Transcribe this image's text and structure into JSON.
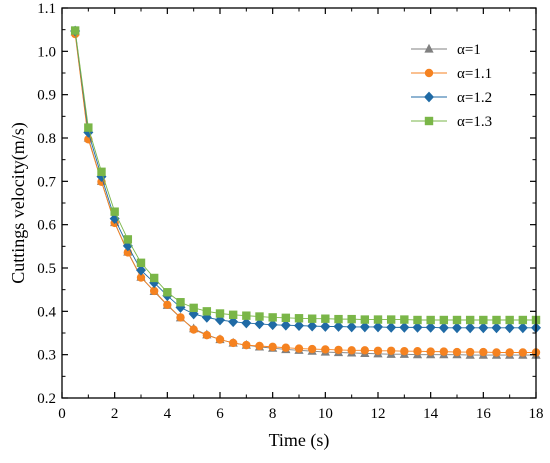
{
  "chart_data": {
    "type": "line",
    "title": "",
    "xlabel": "Time (s)",
    "ylabel": "Cuttings velocity(m/s)",
    "xlim": [
      0,
      18
    ],
    "ylim": [
      0.2,
      1.1
    ],
    "xticks": [
      "0",
      "2",
      "4",
      "6",
      "8",
      "10",
      "12",
      "14",
      "16",
      "18"
    ],
    "yticks": [
      "0.2",
      "0.3",
      "0.4",
      "0.5",
      "0.6",
      "0.7",
      "0.8",
      "0.9",
      "1.0",
      "1.1"
    ],
    "grid": false,
    "legend_position": "top-right",
    "x": [
      0.5,
      1.0,
      1.5,
      2.0,
      2.5,
      3.0,
      3.5,
      4.0,
      4.5,
      5.0,
      5.5,
      6.0,
      6.5,
      7.0,
      7.5,
      8.0,
      8.5,
      9.0,
      9.5,
      10.0,
      10.5,
      11.0,
      11.5,
      12.0,
      12.5,
      13.0,
      13.5,
      14.0,
      14.5,
      15.0,
      15.5,
      16.0,
      16.5,
      17.0,
      17.5,
      18.0
    ],
    "series": [
      {
        "name": "α=1",
        "color": "#808080",
        "marker": "triangle",
        "values": [
          1.045,
          0.8,
          0.7,
          0.605,
          0.537,
          0.479,
          0.446,
          0.414,
          0.385,
          0.36,
          0.346,
          0.335,
          0.327,
          0.322,
          0.318,
          0.315,
          0.312,
          0.31,
          0.308,
          0.306,
          0.305,
          0.304,
          0.303,
          0.302,
          0.301,
          0.301,
          0.3,
          0.3,
          0.3,
          0.3,
          0.299,
          0.299,
          0.299,
          0.299,
          0.299,
          0.299
        ]
      },
      {
        "name": "α=1.1",
        "color": "#F58220",
        "marker": "circle",
        "values": [
          1.04,
          0.797,
          0.699,
          0.604,
          0.536,
          0.478,
          0.447,
          0.415,
          0.386,
          0.358,
          0.345,
          0.335,
          0.327,
          0.322,
          0.32,
          0.318,
          0.316,
          0.314,
          0.313,
          0.312,
          0.311,
          0.31,
          0.31,
          0.309,
          0.309,
          0.308,
          0.308,
          0.307,
          0.307,
          0.306,
          0.306,
          0.306,
          0.305,
          0.305,
          0.305,
          0.305
        ]
      },
      {
        "name": "α=1.2",
        "color": "#1F6AA5",
        "marker": "diamond",
        "values": [
          1.047,
          0.813,
          0.711,
          0.614,
          0.551,
          0.495,
          0.466,
          0.436,
          0.409,
          0.394,
          0.386,
          0.38,
          0.376,
          0.373,
          0.371,
          0.369,
          0.368,
          0.367,
          0.366,
          0.365,
          0.365,
          0.364,
          0.364,
          0.364,
          0.363,
          0.363,
          0.363,
          0.363,
          0.362,
          0.362,
          0.362,
          0.362,
          0.362,
          0.362,
          0.362,
          0.362
        ]
      },
      {
        "name": "α=1.3",
        "color": "#7AB648",
        "marker": "square",
        "values": [
          1.048,
          0.824,
          0.722,
          0.63,
          0.566,
          0.512,
          0.477,
          0.444,
          0.421,
          0.408,
          0.4,
          0.395,
          0.392,
          0.39,
          0.388,
          0.386,
          0.385,
          0.384,
          0.383,
          0.383,
          0.382,
          0.382,
          0.381,
          0.381,
          0.381,
          0.381,
          0.38,
          0.38,
          0.38,
          0.38,
          0.38,
          0.38,
          0.38,
          0.38,
          0.38,
          0.38
        ]
      }
    ]
  }
}
